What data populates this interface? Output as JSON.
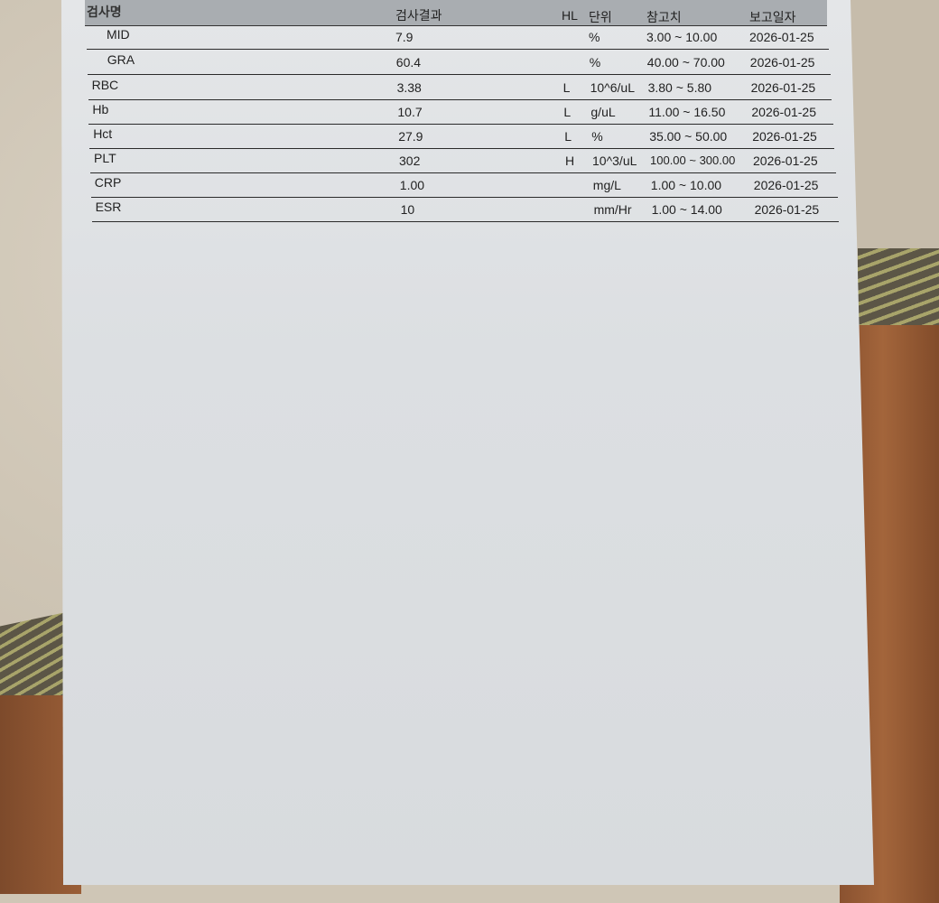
{
  "headers": {
    "name": "검사명",
    "result": "검사결과",
    "hl": "HL",
    "unit": "단위",
    "ref": "참고치",
    "date": "보고일자"
  },
  "rows": [
    {
      "name": "MID",
      "result": "7.9",
      "hl": "",
      "unit": "%",
      "ref": "3.00 ~ 10.00",
      "date": "2026-01-25",
      "indent": true
    },
    {
      "name": "GRA",
      "result": "60.4",
      "hl": "",
      "unit": "%",
      "ref": "40.00 ~ 70.00",
      "date": "2026-01-25",
      "indent": true
    },
    {
      "name": "RBC",
      "result": "3.38",
      "hl": "L",
      "unit": "10^6/uL",
      "ref": "3.80 ~ 5.80",
      "date": "2026-01-25"
    },
    {
      "name": "Hb",
      "result": "10.7",
      "hl": "L",
      "unit": "g/uL",
      "ref": "11.00 ~ 16.50",
      "date": "2026-01-25"
    },
    {
      "name": "Hct",
      "result": "27.9",
      "hl": "L",
      "unit": "%",
      "ref": "35.00 ~ 50.00",
      "date": "2026-01-25"
    },
    {
      "name": "PLT",
      "result": "302",
      "hl": "H",
      "unit": "10^3/uL",
      "ref": "100.00 ~ 300.00",
      "date": "2026-01-25"
    },
    {
      "name": "CRP",
      "result": "1.00",
      "hl": "",
      "unit": "mg/L",
      "ref": "1.00 ~ 10.00",
      "date": "2026-01-25"
    },
    {
      "name": "ESR",
      "result": "10",
      "hl": "",
      "unit": "mm/Hr",
      "ref": "1.00 ~ 14.00",
      "date": "2026-01-25"
    }
  ]
}
